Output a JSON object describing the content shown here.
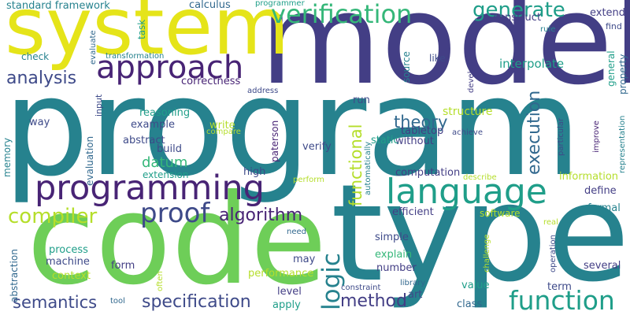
{
  "palette": {
    "dark_purple": "#482475",
    "purple": "#3e4a89",
    "blue": "#31688e",
    "teal": "#26828e",
    "green": "#1f9e89",
    "bright_green": "#35b779",
    "lime": "#6ece58",
    "light_lime": "#b5de2b",
    "yellow": "#e5e419",
    "navy": "#433e85"
  },
  "words": [
    "program",
    "model",
    "type",
    "code",
    "system",
    "language",
    "programming",
    "approach",
    "verification",
    "proof",
    "function",
    "logic",
    "compiler",
    "generate",
    "analysis",
    "algorithm",
    "specification",
    "semantics",
    "method",
    "theory",
    "execution",
    "functional",
    "datum",
    "interpolate",
    "construct",
    "extend",
    "standard framework",
    "calculus",
    "programmer",
    "task",
    "rule",
    "find",
    "check",
    "transformation",
    "evaluate",
    "like",
    "source",
    "development",
    "general",
    "property",
    "correctness",
    "address",
    "run",
    "reasoning",
    "example",
    "abstract",
    "build",
    "write",
    "compare",
    "structure",
    "tabletop",
    "without",
    "achieve",
    "static",
    "input",
    "paterson",
    "way",
    "verify",
    "improve",
    "representation",
    "particular",
    "evaluation",
    "memory",
    "high",
    "computation",
    "automatically",
    "extension",
    "describe",
    "information",
    "define",
    "perform",
    "efficient",
    "software",
    "formal",
    "need",
    "real",
    "process",
    "simple",
    "abstraction",
    "machine",
    "form",
    "explain",
    "context",
    "number",
    "may",
    "challenge",
    "operation",
    "several",
    "performance",
    "often",
    "constraint",
    "library",
    "value",
    "term",
    "level",
    "art",
    "tool",
    "apply",
    "class"
  ]
}
